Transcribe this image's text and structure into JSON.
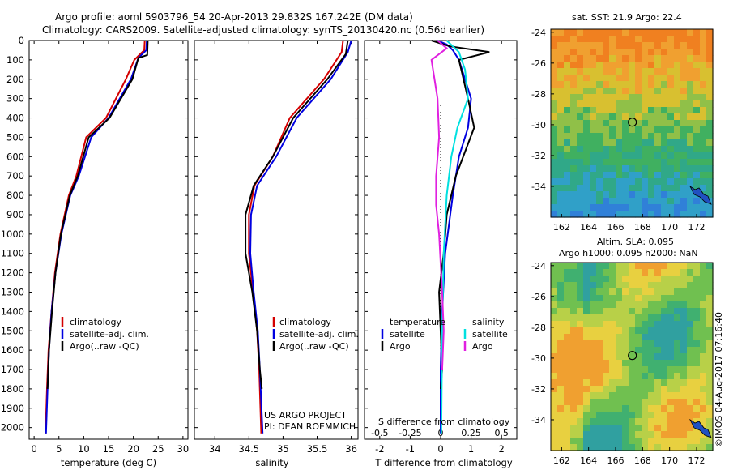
{
  "header": {
    "line1": "Argo profile: aoml 5903796_54 20-Apr-2013 29.832S 167.242E (DM data)",
    "line2": "Climatology: CARS2009. Satellite-adjusted climatology: synTS_20130420.nc (0.56d earlier)"
  },
  "colors": {
    "climatology": "#d40000",
    "satellite": "#0000e0",
    "argo": "#000000",
    "sat_salinity": "#00e0e0",
    "argo_salinity": "#e020e0"
  },
  "credits": {
    "project": "US ARGO PROJECT",
    "pi": "PI: DEAN ROEMMICH"
  },
  "watermark": "©IMOS 04-Aug-2017 07:16:40",
  "chart_data": [
    {
      "type": "line",
      "xlabel": "temperature (deg C)",
      "xlim": [
        -1,
        31
      ],
      "ylim": [
        2060,
        0
      ],
      "xticks": [
        "0",
        "5",
        "10",
        "15",
        "20",
        "25",
        "30"
      ],
      "xtick_values": [
        0,
        5,
        10,
        15,
        20,
        25,
        30
      ],
      "yticks": [
        "0",
        "100",
        "200",
        "300",
        "400",
        "500",
        "600",
        "700",
        "800",
        "900",
        "1000",
        "1100",
        "1200",
        "1300",
        "1400",
        "1500",
        "1600",
        "1700",
        "1800",
        "1900",
        "2000"
      ],
      "ytick_values": [
        0,
        100,
        200,
        300,
        400,
        500,
        600,
        700,
        800,
        900,
        1000,
        1100,
        1200,
        1300,
        1400,
        1500,
        1600,
        1700,
        1800,
        1900,
        2000
      ],
      "legend": [
        "climatology",
        "satellite-adj. clim.",
        "Argo(..raw -QC)"
      ],
      "series": [
        {
          "name": "climatology",
          "color": "#d40000",
          "points": [
            [
              22.3,
              0
            ],
            [
              22.2,
              50
            ],
            [
              20.2,
              100
            ],
            [
              18.5,
              200
            ],
            [
              14.5,
              400
            ],
            [
              10.5,
              500
            ],
            [
              8.5,
              700
            ],
            [
              7.0,
              800
            ],
            [
              5.3,
              1000
            ],
            [
              4.2,
              1200
            ],
            [
              3.5,
              1400
            ],
            [
              2.9,
              1600
            ],
            [
              2.6,
              1800
            ],
            [
              2.3,
              2030
            ]
          ]
        },
        {
          "name": "satellite-adj. clim.",
          "color": "#0000e0",
          "points": [
            [
              22.7,
              0
            ],
            [
              22.6,
              50
            ],
            [
              21.0,
              90
            ],
            [
              19.5,
              200
            ],
            [
              15.0,
              400
            ],
            [
              11.5,
              500
            ],
            [
              9.0,
              700
            ],
            [
              7.3,
              800
            ],
            [
              5.5,
              1000
            ],
            [
              4.3,
              1200
            ],
            [
              3.5,
              1400
            ],
            [
              3.0,
              1600
            ],
            [
              2.7,
              1800
            ],
            [
              2.4,
              2030
            ]
          ]
        },
        {
          "name": "Argo(..raw -QC)",
          "color": "#000000",
          "points": [
            [
              22.9,
              0
            ],
            [
              22.8,
              75
            ],
            [
              21.0,
              90
            ],
            [
              19.8,
              200
            ],
            [
              15.2,
              400
            ],
            [
              11.0,
              500
            ],
            [
              8.8,
              700
            ],
            [
              7.2,
              800
            ],
            [
              5.4,
              1000
            ],
            [
              4.3,
              1200
            ],
            [
              3.6,
              1400
            ],
            [
              3.0,
              1600
            ],
            [
              2.7,
              1800
            ]
          ]
        }
      ]
    },
    {
      "type": "line",
      "xlabel": "salinity",
      "xlim": [
        33.7,
        36.1
      ],
      "ylim": [
        2060,
        0
      ],
      "xticks": [
        "34",
        "34.5",
        "35",
        "35.5",
        "36"
      ],
      "xtick_values": [
        34,
        34.5,
        35,
        35.5,
        36
      ],
      "legend": [
        "climatology",
        "satellite-adj. clim.",
        "Argo(..raw -QC)"
      ],
      "series": [
        {
          "name": "climatology",
          "color": "#d40000",
          "points": [
            [
              35.88,
              0
            ],
            [
              35.86,
              60
            ],
            [
              35.6,
              200
            ],
            [
              35.1,
              400
            ],
            [
              34.85,
              600
            ],
            [
              34.58,
              750
            ],
            [
              34.5,
              900
            ],
            [
              34.5,
              1100
            ],
            [
              34.56,
              1300
            ],
            [
              34.62,
              1500
            ],
            [
              34.65,
              1700
            ],
            [
              34.68,
              2030
            ]
          ]
        },
        {
          "name": "satellite-adj. clim.",
          "color": "#0000e0",
          "points": [
            [
              36.0,
              0
            ],
            [
              35.95,
              60
            ],
            [
              35.7,
              200
            ],
            [
              35.2,
              400
            ],
            [
              34.9,
              600
            ],
            [
              34.62,
              750
            ],
            [
              34.53,
              900
            ],
            [
              34.52,
              1100
            ],
            [
              34.57,
              1300
            ],
            [
              34.63,
              1500
            ],
            [
              34.66,
              1700
            ],
            [
              34.7,
              2030
            ]
          ]
        },
        {
          "name": "Argo(..raw -QC)",
          "color": "#000000",
          "points": [
            [
              35.95,
              0
            ],
            [
              35.92,
              70
            ],
            [
              35.65,
              200
            ],
            [
              35.15,
              400
            ],
            [
              34.85,
              600
            ],
            [
              34.57,
              750
            ],
            [
              34.45,
              900
            ],
            [
              34.45,
              1100
            ],
            [
              34.55,
              1300
            ],
            [
              34.62,
              1500
            ],
            [
              34.66,
              1700
            ],
            [
              34.69,
              1800
            ]
          ]
        }
      ]
    },
    {
      "type": "line",
      "xlabel": "T difference from climatology",
      "xticks": [
        "-2",
        "-1",
        "0",
        "1",
        "2"
      ],
      "xtick_values": [
        -2,
        -1,
        0,
        1,
        2
      ],
      "xlim": [
        -2.5,
        2.5
      ],
      "ylim": [
        2060,
        0
      ],
      "secondary_xlabel": "S difference from climatology",
      "secondary_xticks": [
        "-0.5",
        "-0.25",
        "0",
        "0.25",
        "0.5"
      ],
      "secondary_xtick_values": [
        -0.5,
        -0.25,
        0,
        0.25,
        0.5
      ],
      "legend_left_title": "temperature",
      "legend_right_title": "salinity",
      "legend_left": [
        "satellite",
        "Argo"
      ],
      "legend_right": [
        "satellite",
        "Argo"
      ],
      "series": [
        {
          "name": "satellite",
          "color": "#0000e0",
          "points": [
            [
              -0.1,
              0
            ],
            [
              0.2,
              20
            ],
            [
              0.4,
              50
            ],
            [
              0.6,
              100
            ],
            [
              1.0,
              300
            ],
            [
              0.9,
              450
            ],
            [
              0.6,
              600
            ],
            [
              0.4,
              800
            ],
            [
              0.15,
              1100
            ],
            [
              0.05,
              1400
            ],
            [
              0.0,
              1700
            ],
            [
              0.0,
              2030
            ]
          ]
        },
        {
          "name": "Argo",
          "color": "#000000",
          "points": [
            [
              -0.3,
              0
            ],
            [
              0.3,
              30
            ],
            [
              1.6,
              60
            ],
            [
              0.6,
              100
            ],
            [
              0.9,
              300
            ],
            [
              1.1,
              450
            ],
            [
              0.5,
              700
            ],
            [
              0.2,
              900
            ],
            [
              0.1,
              1100
            ],
            [
              -0.05,
              1300
            ],
            [
              0.0,
              1500
            ],
            [
              0.05,
              1700
            ],
            [
              0.0,
              1800
            ]
          ]
        },
        {
          "name": "sat salinity",
          "color": "#00e0e0",
          "points": [
            [
              0.2,
              0
            ],
            [
              0.6,
              60
            ],
            [
              0.8,
              150
            ],
            [
              0.9,
              300
            ],
            [
              0.55,
              450
            ],
            [
              0.35,
              600
            ],
            [
              0.2,
              800
            ],
            [
              0.1,
              1100
            ],
            [
              0.05,
              1500
            ],
            [
              0.02,
              2030
            ]
          ]
        },
        {
          "name": "Argo salinity",
          "color": "#e020e0",
          "points": [
            [
              -0.1,
              0
            ],
            [
              0.2,
              40
            ],
            [
              -0.3,
              100
            ],
            [
              -0.1,
              300
            ],
            [
              -0.05,
              500
            ],
            [
              -0.15,
              700
            ],
            [
              -0.15,
              850
            ],
            [
              -0.05,
              1000
            ],
            [
              0.05,
              1300
            ],
            [
              0.1,
              1500
            ],
            [
              0.05,
              1700
            ]
          ]
        }
      ]
    }
  ],
  "maps": [
    {
      "title": "sat. SST: 21.9 Argo: 22.4",
      "lat_ticks": [
        "-24",
        "-26",
        "-28",
        "-30",
        "-32",
        "-34"
      ],
      "lat_tick_values": [
        -24,
        -26,
        -28,
        -30,
        -32,
        -34
      ],
      "lon_ticks": [
        "162",
        "164",
        "166",
        "168",
        "170",
        "172"
      ],
      "lon_tick_values": [
        162,
        164,
        166,
        168,
        170,
        172
      ],
      "xlim": [
        161.2,
        173.2
      ],
      "ylim": [
        -36.0,
        -23.8
      ],
      "float_position": [
        167.242,
        -29.832
      ],
      "palette": [
        "#f08020",
        "#f0a030",
        "#d8c030",
        "#90c048",
        "#40b060",
        "#30a888",
        "#30a0c8",
        "#3080d8"
      ]
    },
    {
      "title_line1": "Altim. SLA: 0.095",
      "title_line2": "Argo h1000: 0.095 h2000: NaN",
      "lat_ticks": [
        "-24",
        "-26",
        "-28",
        "-30",
        "-32",
        "-34"
      ],
      "lat_tick_values": [
        -24,
        -26,
        -28,
        -30,
        -32,
        -34
      ],
      "lon_ticks": [
        "162",
        "164",
        "166",
        "168",
        "170",
        "172"
      ],
      "lon_tick_values": [
        162,
        164,
        166,
        168,
        170,
        172
      ],
      "xlim": [
        161.2,
        173.2
      ],
      "ylim": [
        -36.0,
        -23.8
      ],
      "float_position": [
        167.242,
        -29.832
      ],
      "palette": [
        "#f0a030",
        "#e8d040",
        "#b8d048",
        "#70c050",
        "#40b070",
        "#30a0a0"
      ]
    }
  ]
}
